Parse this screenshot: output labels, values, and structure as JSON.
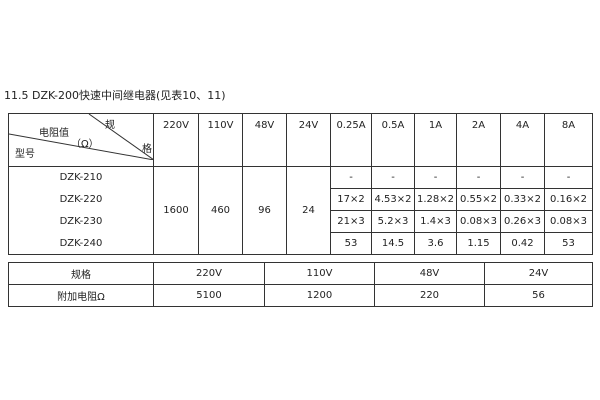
{
  "title": "11.5 DZK-200快速中间继电器(见表10、11)",
  "table1": {
    "corner": {
      "spec_top": "规",
      "spec_bottom": "格",
      "resistance": "电阻值",
      "unit": "（Ω）",
      "model": "型号"
    },
    "headers": [
      "220V",
      "110V",
      "48V",
      "24V",
      "0.25A",
      "0.5A",
      "1A",
      "2A",
      "4A",
      "8A"
    ],
    "models": [
      "DZK-210",
      "DZK-220",
      "DZK-230",
      "DZK-240"
    ],
    "voltage_values": [
      "1600",
      "460",
      "96",
      "24"
    ],
    "current_rows": [
      [
        "-",
        "-",
        "-",
        "-",
        "-",
        "-"
      ],
      [
        "17×2",
        "4.53×2",
        "1.28×2",
        "0.55×2",
        "0.33×2",
        "0.16×2"
      ],
      [
        "21×3",
        "5.2×3",
        "1.4×3",
        "0.08×3",
        "0.26×3",
        "0.08×3"
      ],
      [
        "53",
        "14.5",
        "3.6",
        "1.15",
        "0.42",
        "53"
      ]
    ]
  },
  "table2": {
    "row1": [
      "规格",
      "220V",
      "110V",
      "48V",
      "24V"
    ],
    "row2": [
      "附加电阻Ω",
      "5100",
      "1200",
      "220",
      "56"
    ]
  }
}
